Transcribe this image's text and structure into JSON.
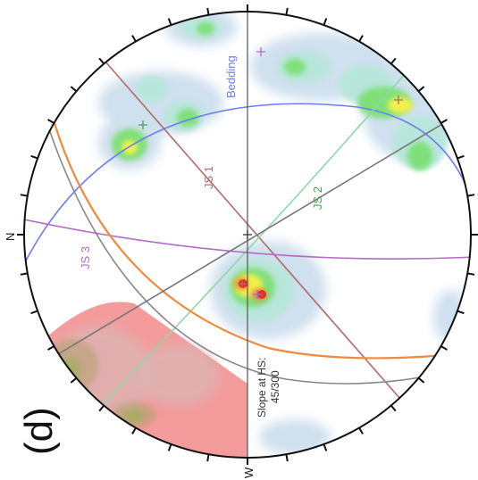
{
  "panel_label": "(d)",
  "north_label": "N",
  "west_label": "W",
  "planes": {
    "bedding": {
      "label": "Bedding",
      "color": "#6f7df0"
    },
    "js1": {
      "label": "JS 1",
      "color": "#b36a66"
    },
    "js2": {
      "label": "JS 2",
      "color": "#3aa84a"
    },
    "js3": {
      "label": "JS 3",
      "color": "#b46ac8"
    }
  },
  "slope": {
    "line1": "Slope at HS:",
    "line2": "45/300",
    "color": "#f08a3c"
  },
  "colors": {
    "failure_zone": "#f28b8b",
    "contour_low": "#cfe0ee",
    "contour_mid": "#b8e6da",
    "contour_green": "#7fe07a",
    "contour_yellow": "#f2f24a",
    "contour_red": "#e83020",
    "circle": "#111111"
  }
}
